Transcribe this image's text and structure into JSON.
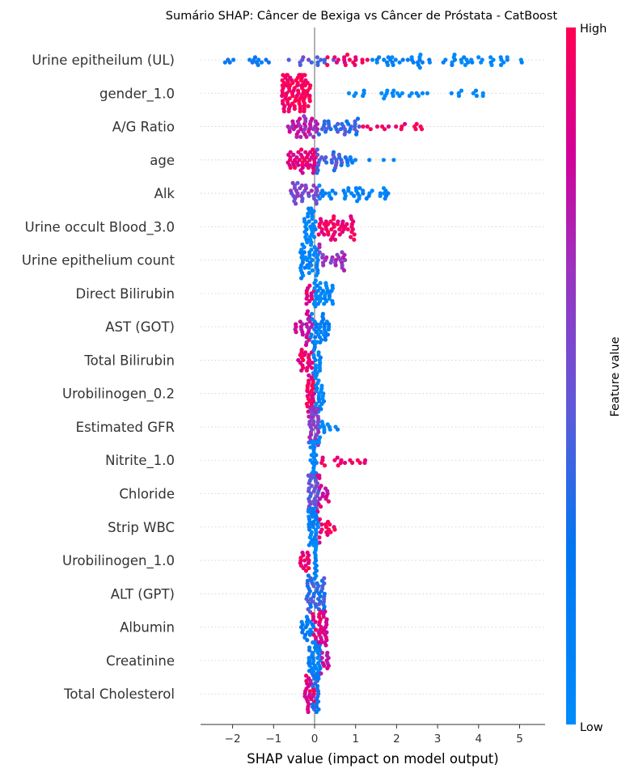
{
  "chart_data": {
    "type": "scatter",
    "subtype": "shap-beeswarm-summary",
    "title": "Sumário SHAP: Câncer de Bexiga vs Câncer de Próstata - CatBoost",
    "xlabel": "SHAP value (impact on model output)",
    "xlim": [
      -2.75,
      5.6
    ],
    "xticks": [
      -2,
      -1,
      0,
      1,
      2,
      3,
      4,
      5
    ],
    "xtick_labels": [
      "−2",
      "−1",
      "0",
      "1",
      "2",
      "3",
      "4",
      "5"
    ],
    "colorbar": {
      "label": "Feature value",
      "high_label": "High",
      "low_label": "Low",
      "low_color": "#008bfb",
      "high_color": "#ff0052"
    },
    "features": [
      {
        "name": "Urine epitheilum (UL)",
        "shap_min": -2.35,
        "shap_max": 5.2,
        "clusters": [
          [
            -2.3,
            -1.0,
            0.2,
            14
          ],
          [
            -0.8,
            0.5,
            0.45,
            14
          ],
          [
            0.3,
            1.4,
            0.95,
            18
          ],
          [
            1.4,
            3.2,
            0.1,
            30
          ],
          [
            3.2,
            5.2,
            0.05,
            28
          ]
        ]
      },
      {
        "name": "gender_1.0",
        "shap_min": -0.8,
        "shap_max": 4.25,
        "clusters": [
          [
            -0.8,
            -0.1,
            1.0,
            90
          ],
          [
            0.8,
            4.25,
            0.0,
            32
          ]
        ]
      },
      {
        "name": "A/G Ratio",
        "shap_min": -0.65,
        "shap_max": 2.65,
        "clusters": [
          [
            -0.65,
            0.1,
            0.75,
            40
          ],
          [
            0.1,
            1.1,
            0.35,
            34
          ],
          [
            1.0,
            2.65,
            0.95,
            16
          ]
        ]
      },
      {
        "name": "age",
        "shap_min": -0.65,
        "shap_max": 2.15,
        "clusters": [
          [
            -0.65,
            0.05,
            0.9,
            46
          ],
          [
            0.05,
            0.9,
            0.4,
            30
          ],
          [
            0.8,
            2.15,
            0.1,
            8
          ]
        ]
      },
      {
        "name": "Alk",
        "shap_min": -0.6,
        "shap_max": 1.8,
        "clusters": [
          [
            -0.6,
            0.1,
            0.55,
            34
          ],
          [
            0.1,
            1.8,
            0.1,
            40
          ]
        ]
      },
      {
        "name": "Urine occult Blood_3.0",
        "shap_min": -0.25,
        "shap_max": 1.0,
        "clusters": [
          [
            -0.25,
            0.05,
            0.05,
            34
          ],
          [
            0.1,
            1.0,
            0.95,
            48
          ]
        ]
      },
      {
        "name": "Urine epithelium count",
        "shap_min": -0.35,
        "shap_max": 0.8,
        "clusters": [
          [
            -0.35,
            0.1,
            0.1,
            42
          ],
          [
            0.1,
            0.8,
            0.65,
            26
          ]
        ]
      },
      {
        "name": "Direct Bilirubin",
        "shap_min": -0.2,
        "shap_max": 0.45,
        "clusters": [
          [
            -0.2,
            0.0,
            0.9,
            12
          ],
          [
            -0.05,
            0.45,
            0.05,
            36
          ]
        ]
      },
      {
        "name": "AST (GOT)",
        "shap_min": -0.5,
        "shap_max": 0.35,
        "clusters": [
          [
            -0.5,
            -0.05,
            0.8,
            26
          ],
          [
            -0.1,
            0.35,
            0.15,
            34
          ]
        ]
      },
      {
        "name": "Total Bilirubin",
        "shap_min": -0.4,
        "shap_max": 0.15,
        "clusters": [
          [
            -0.4,
            -0.05,
            0.95,
            22
          ],
          [
            -0.05,
            0.15,
            0.1,
            30
          ]
        ]
      },
      {
        "name": "Urobilinogen_0.2",
        "shap_min": -0.2,
        "shap_max": 0.25,
        "clusters": [
          [
            -0.2,
            0.0,
            0.95,
            30
          ],
          [
            0.0,
            0.25,
            0.05,
            28
          ]
        ]
      },
      {
        "name": "Estimated GFR",
        "shap_min": -0.15,
        "shap_max": 0.6,
        "clusters": [
          [
            -0.15,
            0.1,
            0.6,
            40
          ],
          [
            0.1,
            0.6,
            0.05,
            14
          ]
        ]
      },
      {
        "name": "Nitrite_1.0",
        "shap_min": -0.1,
        "shap_max": 1.25,
        "clusters": [
          [
            -0.1,
            0.05,
            0.05,
            46
          ],
          [
            0.1,
            1.25,
            0.95,
            16
          ]
        ]
      },
      {
        "name": "Chloride",
        "shap_min": -0.15,
        "shap_max": 0.35,
        "clusters": [
          [
            -0.15,
            0.1,
            0.45,
            40
          ],
          [
            0.05,
            0.35,
            0.85,
            18
          ]
        ]
      },
      {
        "name": "Strip WBC",
        "shap_min": -0.15,
        "shap_max": 0.5,
        "clusters": [
          [
            -0.15,
            0.1,
            0.1,
            40
          ],
          [
            0.1,
            0.5,
            0.95,
            16
          ]
        ]
      },
      {
        "name": "Urobilinogen_1.0",
        "shap_min": -0.35,
        "shap_max": 0.05,
        "clusters": [
          [
            -0.35,
            -0.1,
            0.95,
            16
          ],
          [
            0.0,
            0.05,
            0.05,
            40
          ]
        ]
      },
      {
        "name": "ALT (GPT)",
        "shap_min": -0.2,
        "shap_max": 0.25,
        "clusters": [
          [
            -0.2,
            0.25,
            0.35,
            48
          ]
        ]
      },
      {
        "name": "Albumin",
        "shap_min": -0.35,
        "shap_max": 0.3,
        "clusters": [
          [
            -0.35,
            0.0,
            0.15,
            20
          ],
          [
            -0.05,
            0.3,
            0.85,
            36
          ]
        ]
      },
      {
        "name": "Creatinine",
        "shap_min": -0.15,
        "shap_max": 0.35,
        "clusters": [
          [
            -0.15,
            0.15,
            0.15,
            42
          ],
          [
            0.1,
            0.35,
            0.75,
            14
          ]
        ]
      },
      {
        "name": "Total Cholesterol",
        "shap_min": -0.25,
        "shap_max": 0.1,
        "clusters": [
          [
            -0.25,
            0.0,
            0.85,
            26
          ],
          [
            -0.05,
            0.1,
            0.3,
            30
          ]
        ]
      }
    ]
  }
}
